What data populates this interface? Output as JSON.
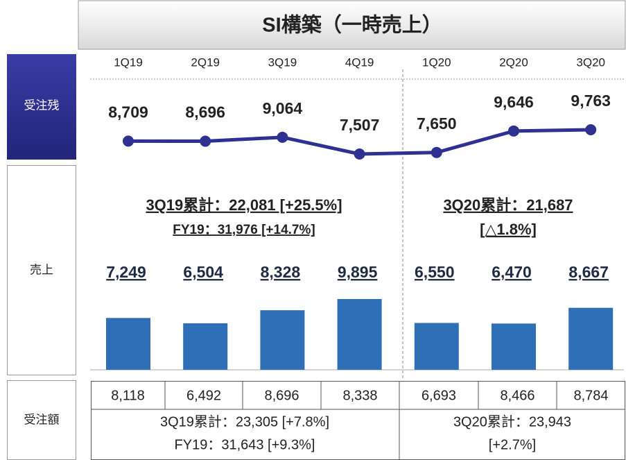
{
  "title": "SI構築（一時売上）",
  "chart_data": [
    {
      "type": "line",
      "name": "受注残",
      "categories": [
        "1Q19",
        "2Q19",
        "3Q19",
        "4Q19",
        "1Q20",
        "2Q20",
        "3Q20"
      ],
      "values": [
        8709,
        8696,
        9064,
        7507,
        7650,
        9646,
        9763
      ],
      "value_labels": [
        "8,709",
        "8,696",
        "9,064",
        "7,507",
        "7,650",
        "9,646",
        "9,763"
      ],
      "color": "#2e3192"
    },
    {
      "type": "bar",
      "name": "売上",
      "values": [
        7249,
        6504,
        8328,
        9895,
        6550,
        6470,
        8667
      ],
      "value_labels": [
        "7,249",
        "6,504",
        "8,328",
        "9,895",
        "6,550",
        "6,470",
        "8,667"
      ],
      "color": "#2e6fb7",
      "annotations": [
        [
          "3Q19累計：22,081 [+25.5%]",
          "FY19：31,976 [+14.7%]"
        ],
        [
          "3Q20累計：21,687",
          "[△1.8%]"
        ]
      ]
    }
  ],
  "table": {
    "name": "受注額",
    "rows": [
      [
        "8,118",
        "6,492",
        "8,696",
        "8,338",
        "6,693",
        "8,466",
        "8,784"
      ]
    ],
    "summaries": [
      [
        "3Q19累計：23,305 [+7.8%]",
        "FY19：31,643 [+9.3%]"
      ],
      [
        "3Q20累計：23,943",
        "[+2.7%]"
      ]
    ]
  }
}
